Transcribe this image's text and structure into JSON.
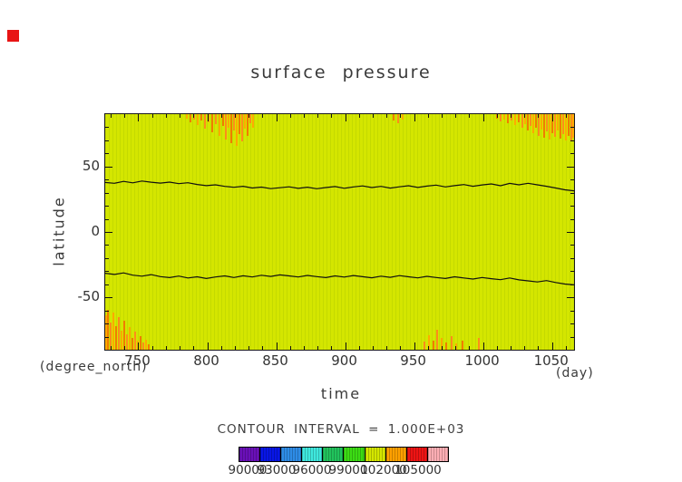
{
  "title": "surface pressure",
  "axis": {
    "ylabel": "latitude",
    "xlabel": "time",
    "y_unit_label": "(degree_north)",
    "x_unit_label": "(day)"
  },
  "marker": {
    "color": "#e81414"
  },
  "chart_data": {
    "type": "heatmap",
    "title": "surface pressure",
    "xlabel": "time",
    "ylabel": "latitude",
    "x_units": "day",
    "y_units": "degree_north",
    "xlim": [
      726,
      1066
    ],
    "ylim": [
      -90,
      90
    ],
    "x_ticks": [
      750,
      800,
      850,
      900,
      950,
      1000,
      1050
    ],
    "y_ticks": [
      50,
      0,
      -50
    ],
    "x_minor_step": 10,
    "y_minor_step": 10,
    "grid": false,
    "field_fill_color": "#d4e600",
    "contour_interval": 1000,
    "contour_interval_label": "CONTOUR INTERVAL = 1.000E+03",
    "contours": {
      "t_start": 726,
      "t_end": 1066,
      "upper_lats": [
        37.8,
        37.2,
        38.6,
        37.5,
        38.9,
        38.0,
        37.3,
        38.1,
        36.9,
        37.6,
        36.3,
        35.4,
        36.0,
        34.8,
        34.1,
        34.9,
        33.6,
        34.3,
        33.1,
        33.8,
        34.5,
        33.3,
        34.2,
        33.0,
        33.9,
        34.7,
        33.4,
        34.4,
        35.2,
        33.9,
        34.8,
        33.5,
        34.5,
        35.3,
        34.0,
        35.0,
        35.8,
        34.4,
        35.4,
        36.2,
        34.9,
        35.9,
        36.7,
        35.3,
        37.1,
        36.0,
        37.2,
        36.0,
        34.9,
        33.6,
        32.2,
        31.4
      ],
      "lower_lats": [
        -31.6,
        -32.5,
        -31.3,
        -33.0,
        -33.8,
        -32.6,
        -34.1,
        -34.9,
        -33.7,
        -35.2,
        -34.3,
        -35.6,
        -34.4,
        -33.6,
        -34.8,
        -33.5,
        -34.4,
        -33.1,
        -34.0,
        -32.8,
        -33.6,
        -34.4,
        -33.2,
        -34.1,
        -34.9,
        -33.6,
        -34.5,
        -33.3,
        -34.2,
        -35.0,
        -33.8,
        -34.7,
        -33.4,
        -34.3,
        -35.1,
        -33.9,
        -34.8,
        -35.6,
        -34.3,
        -35.2,
        -36.0,
        -34.8,
        -35.7,
        -36.5,
        -35.2,
        -36.6,
        -37.4,
        -38.2,
        -37.2,
        -38.6,
        -39.8,
        -40.4
      ]
    },
    "streak_colors": [
      "#ffaa00",
      "#f07d00",
      "#ff8c1a"
    ],
    "top_streaks": [
      [
        90,
        5
      ],
      [
        94,
        9
      ],
      [
        98,
        6
      ],
      [
        102,
        12
      ],
      [
        106,
        7
      ],
      [
        110,
        16
      ],
      [
        114,
        9
      ],
      [
        118,
        20
      ],
      [
        122,
        11
      ],
      [
        126,
        24
      ],
      [
        130,
        13
      ],
      [
        133,
        28
      ],
      [
        136,
        15
      ],
      [
        139,
        32
      ],
      [
        142,
        18
      ],
      [
        145,
        35
      ],
      [
        148,
        22
      ],
      [
        151,
        30
      ],
      [
        154,
        16
      ],
      [
        157,
        24
      ],
      [
        160,
        10
      ],
      [
        163,
        15
      ],
      [
        318,
        7
      ],
      [
        323,
        10
      ],
      [
        328,
        6
      ],
      [
        432,
        5
      ],
      [
        436,
        8
      ],
      [
        440,
        6
      ],
      [
        444,
        10
      ],
      [
        448,
        7
      ],
      [
        452,
        12
      ],
      [
        456,
        9
      ],
      [
        460,
        15
      ],
      [
        463,
        11
      ],
      [
        466,
        18
      ],
      [
        469,
        13
      ],
      [
        472,
        21
      ],
      [
        475,
        15
      ],
      [
        478,
        24
      ],
      [
        481,
        17
      ],
      [
        484,
        26
      ],
      [
        487,
        19
      ],
      [
        490,
        28
      ],
      [
        493,
        21
      ],
      [
        496,
        25
      ],
      [
        499,
        18
      ],
      [
        502,
        27
      ],
      [
        505,
        22
      ],
      [
        508,
        29
      ],
      [
        511,
        24
      ],
      [
        514,
        30
      ],
      [
        516,
        26
      ]
    ],
    "bottom_streaks": [
      [
        1,
        38
      ],
      [
        3,
        44
      ],
      [
        6,
        30
      ],
      [
        9,
        41
      ],
      [
        12,
        26
      ],
      [
        15,
        36
      ],
      [
        18,
        21
      ],
      [
        21,
        32
      ],
      [
        24,
        17
      ],
      [
        27,
        25
      ],
      [
        30,
        13
      ],
      [
        33,
        20
      ],
      [
        36,
        10
      ],
      [
        39,
        15
      ],
      [
        42,
        8
      ],
      [
        45,
        11
      ],
      [
        48,
        6
      ],
      [
        352,
        9
      ],
      [
        357,
        16
      ],
      [
        362,
        10
      ],
      [
        366,
        22
      ],
      [
        371,
        13
      ],
      [
        376,
        8
      ],
      [
        382,
        15
      ],
      [
        387,
        7
      ],
      [
        394,
        10
      ],
      [
        412,
        13
      ]
    ],
    "colorbar": {
      "labels": [
        "90000",
        "93000",
        "96000",
        "99000",
        "102000",
        "105000"
      ],
      "label_rel_centers": [
        10,
        42,
        81,
        121,
        160,
        198
      ],
      "colors": [
        "#6a10b8",
        "#0816e6",
        "#2e8ce6",
        "#3fe8de",
        "#21c35c",
        "#3cdc14",
        "#d4e600",
        "#ffa000",
        "#ee1414",
        "#ffaeb4"
      ]
    }
  }
}
